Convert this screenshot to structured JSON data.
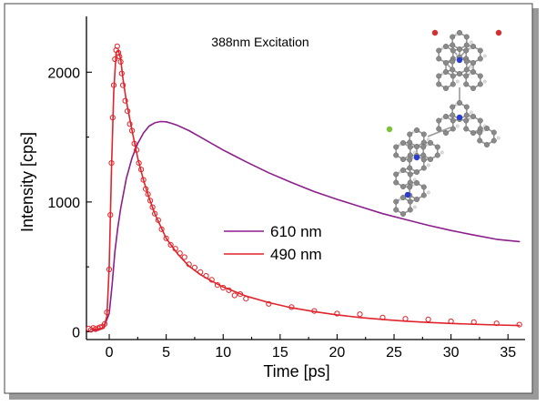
{
  "chart_data": {
    "type": "line",
    "annotation": "388nm Excitation",
    "xlabel": "Time [ps]",
    "ylabel": "Intensity [cps]",
    "xlim": [
      -2,
      36.5
    ],
    "ylim": [
      -60,
      2430
    ],
    "x_ticks": [
      0,
      5,
      10,
      15,
      20,
      25,
      30,
      35
    ],
    "y_ticks": [
      0,
      1000,
      2000
    ],
    "grid": false,
    "legend_position": "center-right",
    "series": [
      {
        "name": "610 nm",
        "color": "#8b1f8b",
        "style": "line",
        "x": [
          -1.5,
          -1,
          -0.5,
          0,
          0.25,
          0.5,
          0.75,
          1,
          1.5,
          2,
          2.5,
          3,
          3.5,
          4,
          4.5,
          5,
          5.5,
          6,
          7,
          8,
          9,
          10,
          12,
          14,
          16,
          18,
          20,
          22,
          24,
          26,
          28,
          30,
          32,
          34,
          36
        ],
        "y": [
          10,
          12,
          30,
          140,
          360,
          620,
          800,
          950,
          1180,
          1340,
          1450,
          1530,
          1585,
          1610,
          1620,
          1618,
          1605,
          1590,
          1550,
          1500,
          1450,
          1400,
          1310,
          1225,
          1150,
          1080,
          1020,
          965,
          910,
          865,
          820,
          780,
          745,
          712,
          695
        ]
      },
      {
        "name": "490 nm",
        "color": "#e0242c",
        "style": "line",
        "x": [
          -1.5,
          -1,
          -0.5,
          -0.2,
          0,
          0.2,
          0.4,
          0.6,
          0.8,
          1,
          1.2,
          1.5,
          2,
          2.5,
          3,
          3.5,
          4,
          5,
          6,
          7,
          8,
          9,
          10,
          12,
          14,
          16,
          18,
          20,
          22,
          24,
          26,
          28,
          30,
          32,
          34,
          36
        ],
        "y": [
          20,
          22,
          30,
          120,
          500,
          1250,
          1850,
          2150,
          2170,
          2100,
          1950,
          1780,
          1550,
          1340,
          1170,
          1030,
          910,
          720,
          600,
          505,
          440,
          390,
          345,
          275,
          225,
          185,
          155,
          130,
          110,
          95,
          82,
          72,
          64,
          58,
          52,
          48
        ]
      },
      {
        "name": "490 nm data",
        "color": "#e0242c",
        "style": "markers",
        "x": [
          -1.8,
          -1.6,
          -1.4,
          -1.2,
          -1.0,
          -0.8,
          -0.6,
          -0.4,
          -0.2,
          0.0,
          0.1,
          0.2,
          0.3,
          0.4,
          0.5,
          0.6,
          0.7,
          0.8,
          0.9,
          1.0,
          1.1,
          1.2,
          1.4,
          1.6,
          1.8,
          2.0,
          2.2,
          2.4,
          2.6,
          2.8,
          3.0,
          3.2,
          3.4,
          3.6,
          3.8,
          4.0,
          4.3,
          4.6,
          5.0,
          5.4,
          5.8,
          6.2,
          6.6,
          7.0,
          7.5,
          8.0,
          8.5,
          9.0,
          9.5,
          10.0,
          10.5,
          11.0,
          11.5,
          12.0,
          14,
          16,
          18,
          20,
          22,
          24,
          26,
          28,
          30,
          32,
          34,
          36
        ],
        "y": [
          25,
          15,
          30,
          20,
          28,
          35,
          40,
          60,
          150,
          480,
          900,
          1300,
          1650,
          1900,
          2100,
          2170,
          2200,
          2150,
          2120,
          2080,
          1990,
          1900,
          1780,
          1700,
          1600,
          1550,
          1450,
          1400,
          1300,
          1250,
          1170,
          1100,
          1060,
          1010,
          960,
          910,
          860,
          790,
          720,
          670,
          640,
          605,
          575,
          520,
          495,
          460,
          430,
          400,
          360,
          340,
          320,
          280,
          290,
          255,
          215,
          190,
          160,
          140,
          135,
          110,
          100,
          95,
          80,
          75,
          65,
          55
        ]
      }
    ]
  },
  "legend": [
    {
      "label": "610 nm",
      "color": "#8b1f8b"
    },
    {
      "label": "490 nm",
      "color": "#e0242c"
    }
  ]
}
